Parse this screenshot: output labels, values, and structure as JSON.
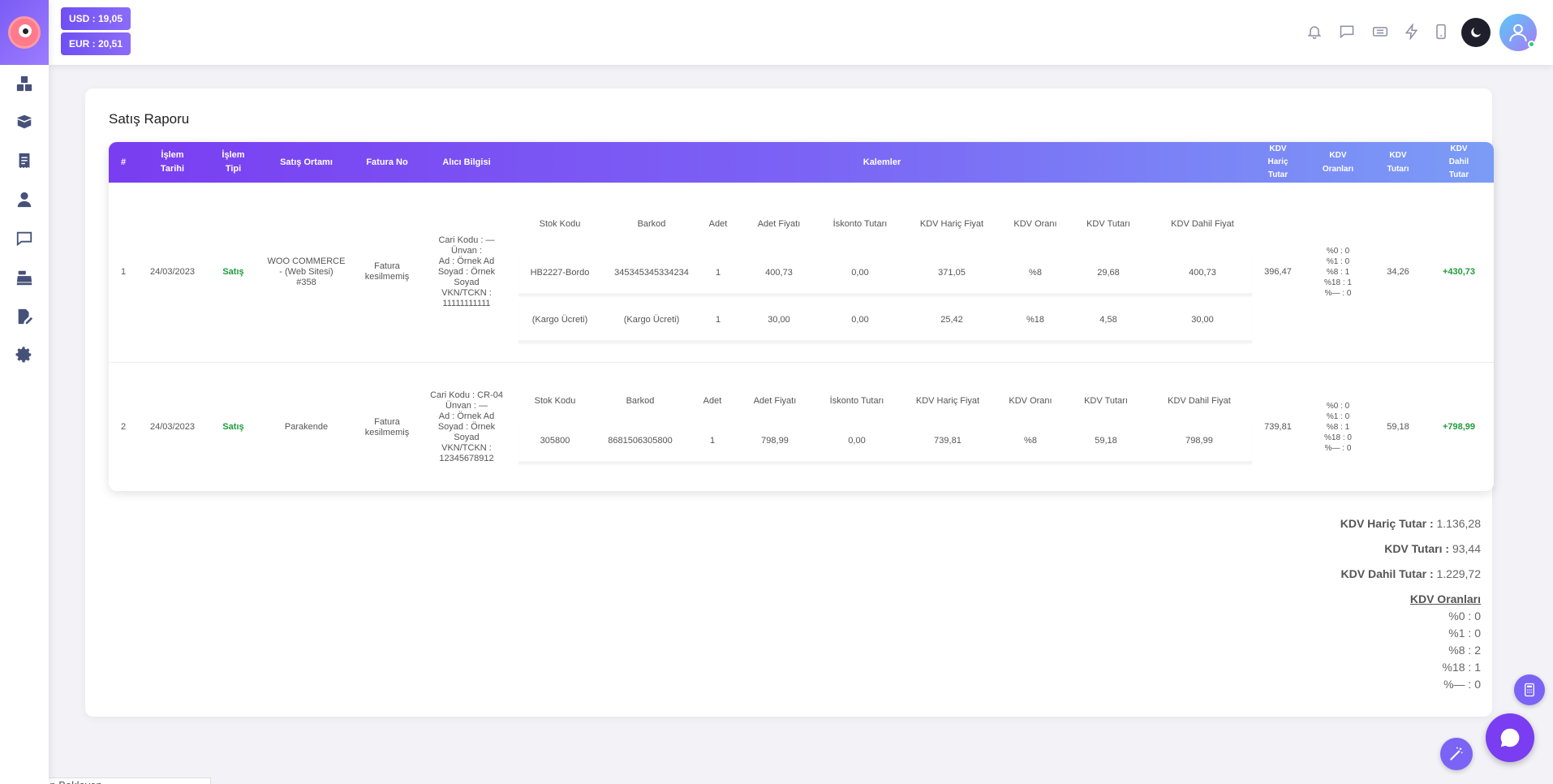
{
  "currency": {
    "usd": "USD : 19,05",
    "eur": "EUR : 20,51"
  },
  "report": {
    "title": "Satış Raporu",
    "headers": {
      "no": "#",
      "date": "İşlem\nTarihi",
      "type": "İşlem\nTipi",
      "channel": "Satış Ortamı",
      "invoice": "Fatura No",
      "buyer": "Alıcı Bilgisi",
      "items": "Kalemler",
      "vat_excl": "KDV\nHariç\nTutar",
      "vat_rates": "KDV\nOranları",
      "vat_amount": "KDV\nTutarı",
      "vat_incl": "KDV\nDahil\nTutar"
    },
    "item_headers": [
      "Stok Kodu",
      "Barkod",
      "Adet",
      "Adet Fiyatı",
      "İskonto Tutarı",
      "KDV Hariç Fiyat",
      "KDV Oranı",
      "KDV Tutarı",
      "KDV Dahil Fiyat"
    ],
    "rows": [
      {
        "no": "1",
        "date": "24/03/2023",
        "type": "Satış",
        "channel": "WOO COMMERCE\n- (Web Sitesi)\n#358",
        "invoice": "Fatura\nkesilmemiş",
        "buyer": "Cari Kodu : —\nÜnvan :\nAd : Örnek Ad\nSoyad : Örnek\nSoyad\nVKN/TCKN :\n11111111111",
        "items": [
          [
            "HB2227-Bordo",
            "345345345334234",
            "1",
            "400,73",
            "0,00",
            "371,05",
            "%8",
            "29,68",
            "400,73"
          ],
          [
            "(Kargo Ücreti)",
            "(Kargo Ücreti)",
            "1",
            "30,00",
            "0,00",
            "25,42",
            "%18",
            "4,58",
            "30,00"
          ]
        ],
        "vat_excl": "396,47",
        "vat_rates": "%0 : 0\n%1 : 0\n%8 : 1\n%18 : 1\n%— : 0",
        "vat_amount": "34,26",
        "vat_incl": "+430,73"
      },
      {
        "no": "2",
        "date": "24/03/2023",
        "type": "Satış",
        "channel": "Parakende",
        "invoice": "Fatura\nkesilmemiş",
        "buyer": "Cari Kodu : CR-04\nÜnvan : —\nAd : Örnek Ad\nSoyad : Örnek\nSoyad\nVKN/TCKN :\n12345678912",
        "items": [
          [
            "305800",
            "8681506305800",
            "1",
            "798,99",
            "0,00",
            "739,81",
            "%8",
            "59,18",
            "798,99"
          ]
        ],
        "vat_excl": "739,81",
        "vat_rates": "%0 : 0\n%1 : 0\n%8 : 1\n%18 : 0\n%— : 0",
        "vat_amount": "59,18",
        "vat_incl": "+798,99"
      }
    ]
  },
  "summary": {
    "vat_excl_label": "KDV Hariç Tutar :",
    "vat_excl_value": "1.136,28",
    "vat_amount_label": "KDV Tutarı :",
    "vat_amount_value": "93,44",
    "vat_incl_label": "KDV Dahil Tutar :",
    "vat_incl_value": "1.229,72",
    "rates_title": "KDV Oranları",
    "rates": [
      "%0 : 0",
      "%1 : 0",
      "%8 : 2",
      "%18 : 1",
      "%— : 0"
    ]
  },
  "pending_label": "Cevap Bekleyen",
  "colors": {
    "accent": "#7a3df1",
    "accent_end": "#7b9cf6",
    "positive": "#1e9c3c"
  }
}
